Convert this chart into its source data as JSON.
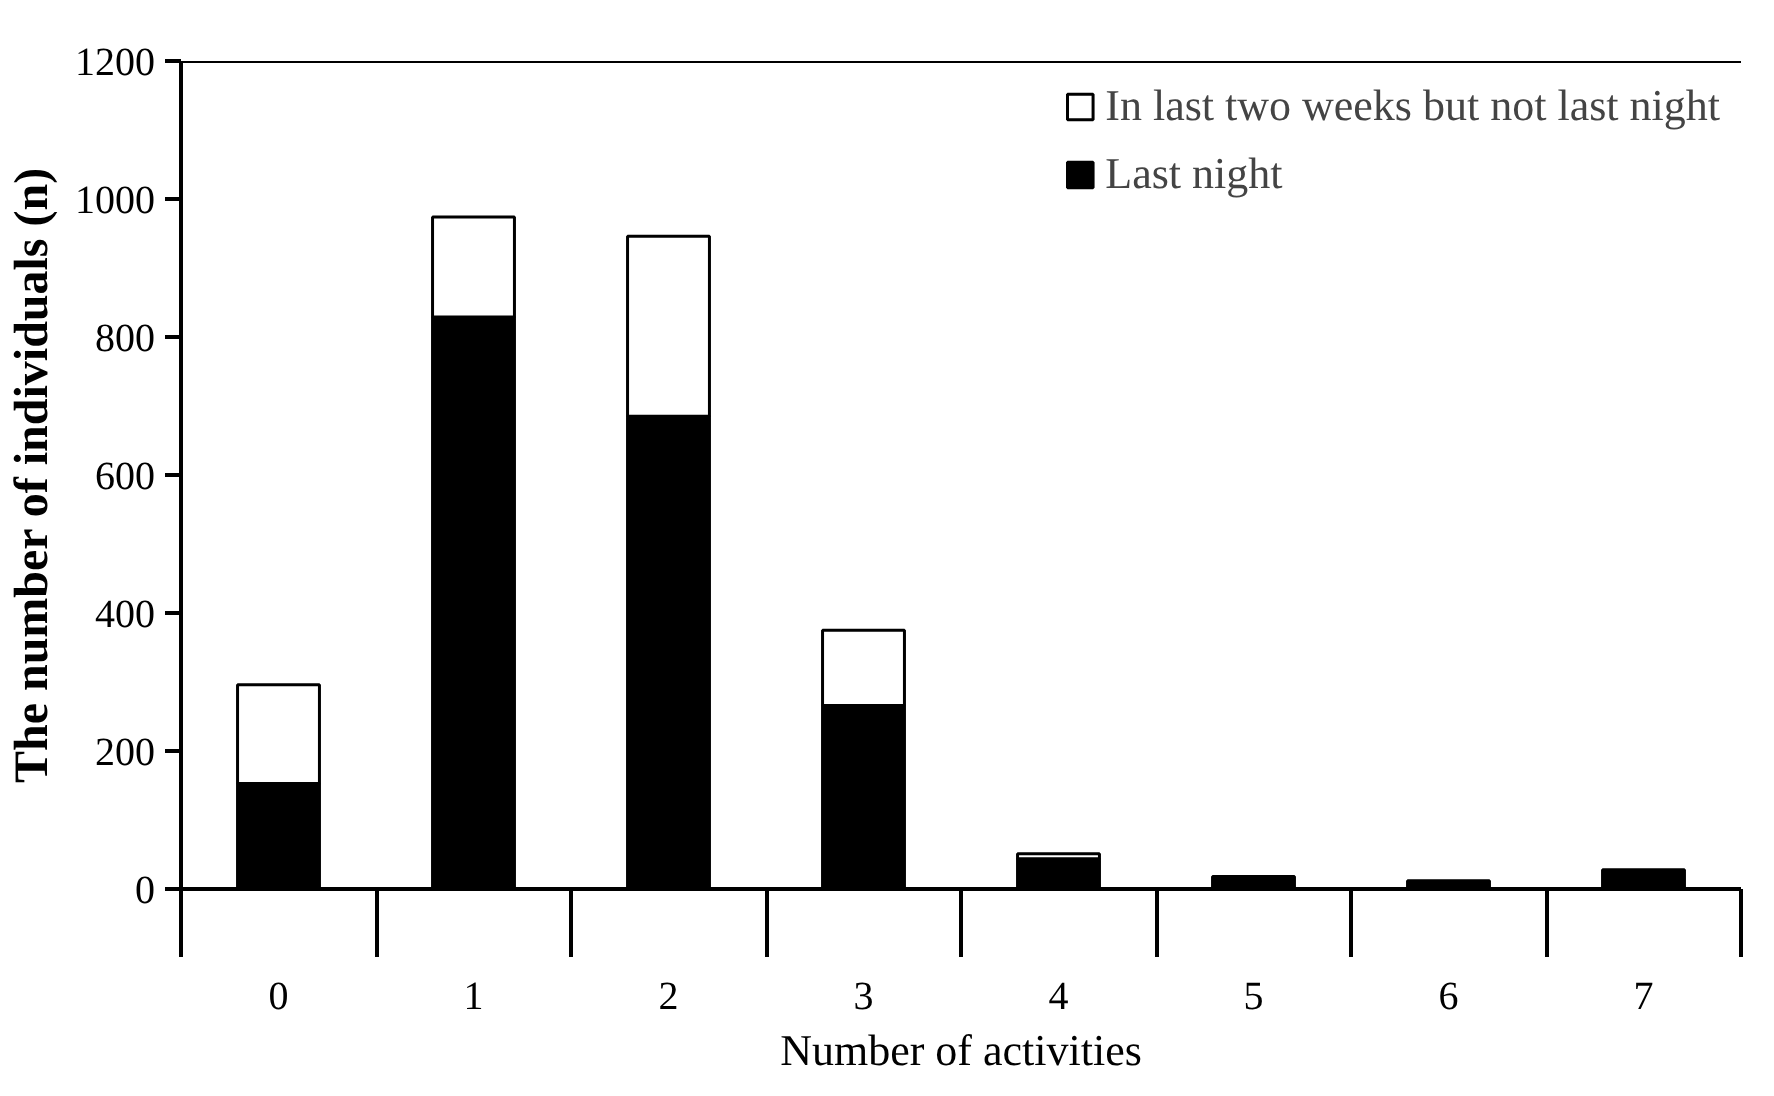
{
  "chart_data": {
    "type": "bar",
    "stacked": true,
    "xlabel": "Number of activities",
    "ylabel": "The number of individuals (n)",
    "categories": [
      "0",
      "1",
      "2",
      "3",
      "4",
      "5",
      "6",
      "7"
    ],
    "series": [
      {
        "name": "Last night",
        "color": "#000000",
        "values": [
          153,
          829,
          685,
          266,
          44,
          18,
          12,
          28
        ]
      },
      {
        "name": "In last two weeks but not last night",
        "color": "#ffffff",
        "values": [
          143,
          145,
          261,
          109,
          7,
          0,
          0,
          0
        ]
      }
    ],
    "ylim": [
      0,
      1200
    ],
    "yticks": [
      0,
      200,
      400,
      600,
      800,
      1000,
      1200
    ],
    "grid": false,
    "legend": "top right"
  }
}
